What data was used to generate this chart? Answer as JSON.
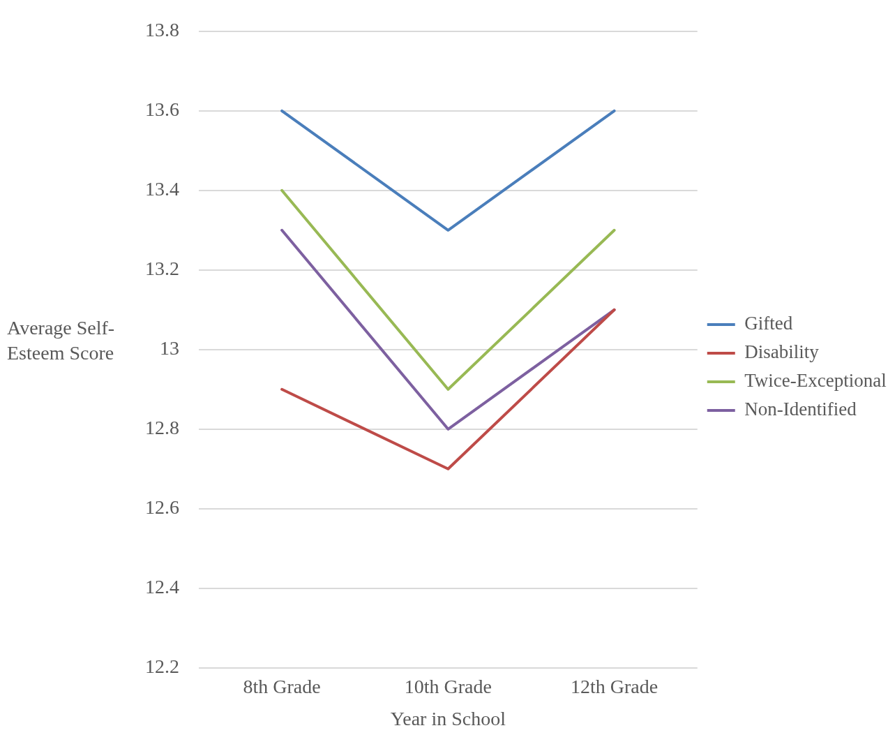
{
  "chart_data": {
    "type": "line",
    "xlabel": "Year in School",
    "ylabel": "Average Self-Esteem Score",
    "categories": [
      "8th Grade",
      "10th Grade",
      "12th Grade"
    ],
    "series": [
      {
        "name": "Gifted",
        "color": "#4a7ebb",
        "values": [
          13.6,
          13.3,
          13.6
        ]
      },
      {
        "name": "Disability",
        "color": "#be4b48",
        "values": [
          12.9,
          12.7,
          13.1
        ]
      },
      {
        "name": "Twice-Exceptional",
        "color": "#98b954",
        "values": [
          13.4,
          12.9,
          13.3
        ]
      },
      {
        "name": "Non-Identified",
        "color": "#7d60a0",
        "values": [
          13.3,
          12.8,
          13.1
        ]
      }
    ],
    "ylim": [
      12.2,
      13.8
    ],
    "yticks": [
      12.2,
      12.4,
      12.6,
      12.8,
      13,
      13.2,
      13.4,
      13.6,
      13.8
    ],
    "grid": "y",
    "legend": "right",
    "marker": "none",
    "line_style": "solid"
  }
}
